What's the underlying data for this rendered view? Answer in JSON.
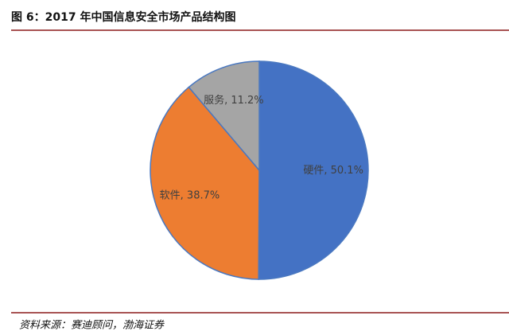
{
  "chart_data": {
    "type": "pie",
    "title": "图 6：2017 年中国信息安全市场产品结构图",
    "source": "资料来源：赛迪顾问，渤海证券",
    "categories": [
      "硬件",
      "软件",
      "服务"
    ],
    "values": [
      50.1,
      38.7,
      11.2
    ],
    "value_labels": [
      "硬件, 50.1%",
      "软件, 38.7%",
      "服务, 11.2%"
    ],
    "colors": [
      "#4472c4",
      "#ed7d31",
      "#a5a5a5"
    ]
  }
}
